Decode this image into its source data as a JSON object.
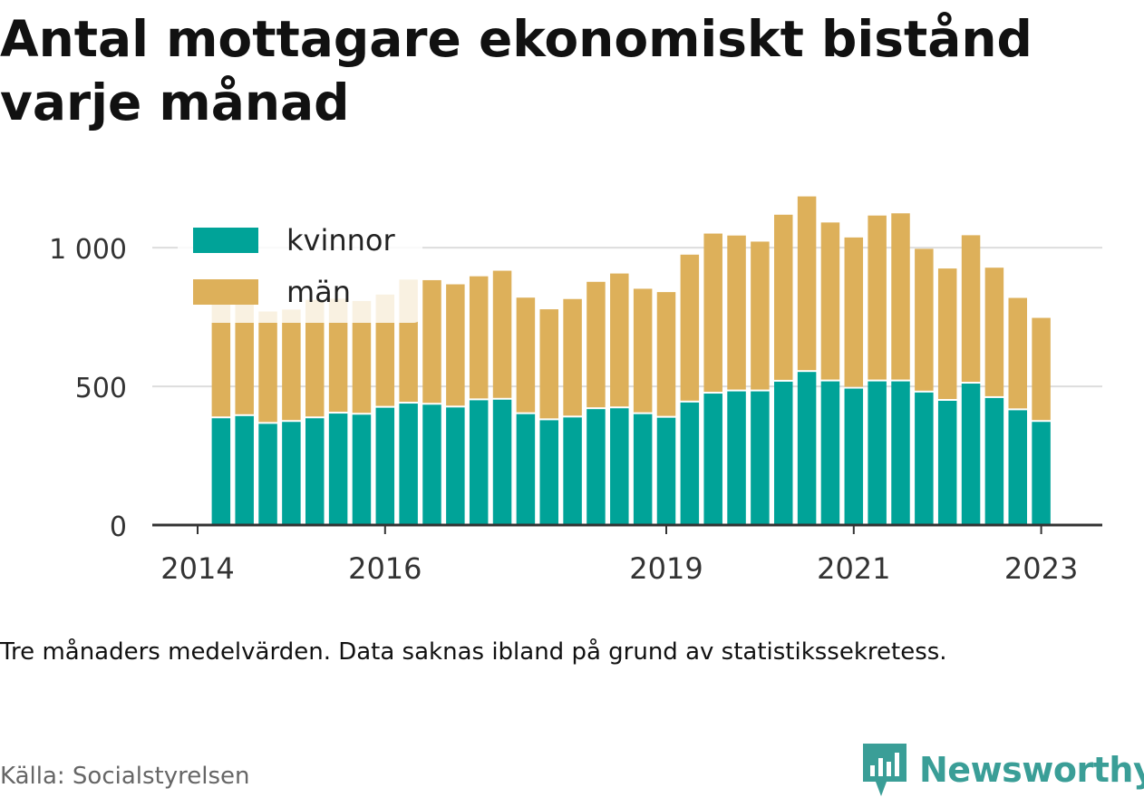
{
  "title": "Antal mottagare ekonomiskt bistånd varje månad",
  "note": "Tre månaders medelvärden. Data saknas ibland på grund av statistikssekretess.",
  "source": "Källa: Socialstyrelsen",
  "brand": "Newsworthy",
  "colors": {
    "kvinnor": "#00a398",
    "man": "#ddb05a",
    "grid": "#dddddd",
    "axis": "#333333"
  },
  "chart_data": {
    "type": "bar",
    "stacked": true,
    "title": "Antal mottagare ekonomiskt bistånd varje månad",
    "xlabel": "",
    "ylabel": "",
    "ylim": [
      0,
      1200
    ],
    "xlim": [
      2014.0,
      2023.45
    ],
    "yticks": [
      {
        "value": 0,
        "label": "0"
      },
      {
        "value": 500,
        "label": "500"
      },
      {
        "value": 1000,
        "label": "1 000"
      }
    ],
    "xticks": [
      {
        "value": 2014,
        "label": "2014"
      },
      {
        "value": 2016,
        "label": "2016"
      },
      {
        "value": 2019,
        "label": "2019"
      },
      {
        "value": 2021,
        "label": "2021"
      },
      {
        "value": 2023,
        "label": "2023"
      }
    ],
    "grid": true,
    "legend_position": "top-left",
    "x": [
      2014.25,
      2014.5,
      2014.75,
      2015.0,
      2015.25,
      2015.5,
      2015.75,
      2016.0,
      2016.25,
      2016.5,
      2016.75,
      2017.0,
      2017.25,
      2017.5,
      2017.75,
      2018.0,
      2018.25,
      2018.5,
      2018.75,
      2019.0,
      2019.25,
      2019.5,
      2019.75,
      2020.0,
      2020.25,
      2020.5,
      2020.75,
      2021.0,
      2021.25,
      2021.5,
      2021.75,
      2022.0,
      2022.25,
      2022.5,
      2022.75,
      2023.0
    ],
    "series": [
      {
        "name": "kvinnor",
        "values": [
          385,
          393,
          365,
          372,
          385,
          402,
          398,
          423,
          438,
          434,
          424,
          450,
          452,
          400,
          378,
          388,
          418,
          421,
          400,
          387,
          442,
          474,
          482,
          482,
          517,
          552,
          518,
          492,
          518,
          518,
          478,
          448,
          510,
          458,
          414,
          372
        ]
      },
      {
        "name": "män",
        "values": [
          427,
          423,
          405,
          405,
          427,
          414,
          410,
          408,
          447,
          449,
          444,
          447,
          465,
          420,
          400,
          427,
          459,
          486,
          452,
          453,
          533,
          577,
          562,
          540,
          602,
          633,
          573,
          545,
          598,
          606,
          518,
          477,
          535,
          470,
          405,
          375
        ]
      }
    ]
  }
}
